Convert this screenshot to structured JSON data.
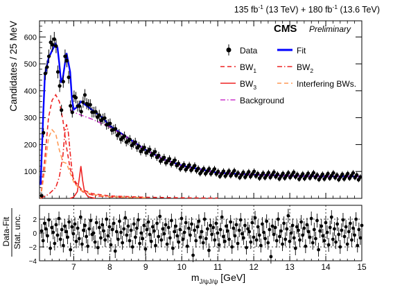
{
  "header": {
    "lumi_a": "135 fb",
    "lumi_a_exp": "-1",
    "lumi_a_energy": " (13 TeV) + 180 fb",
    "lumi_b_exp": "-1",
    "lumi_b_energy": " (13.6 TeV)",
    "experiment": "CMS",
    "status": "Preliminary"
  },
  "chart_data": {
    "type": "scatter",
    "xlabel": "m",
    "xlabel_sub": "J/ψJ/ψ",
    "xlabel_unit": " [GeV]",
    "ylabel": "Candidates / 25 MeV",
    "xlim": [
      6.05,
      15.0
    ],
    "ylim": [
      0,
      660
    ],
    "x_ticks": [
      7,
      8,
      9,
      10,
      11,
      12,
      13,
      14,
      15
    ],
    "x_tick_labels": [
      "7",
      "8",
      "9",
      "10",
      "11",
      "12",
      "13",
      "14",
      "15"
    ],
    "y_ticks": [
      100,
      200,
      300,
      400,
      500,
      600
    ],
    "y_tick_labels": [
      "100",
      "200",
      "300",
      "400",
      "500",
      "600"
    ],
    "legend": {
      "placement": "top-right",
      "entries": [
        {
          "label": "Data",
          "style": "marker",
          "color": "#000000"
        },
        {
          "label": "Fit",
          "style": "solid",
          "color": "#0000ff"
        },
        {
          "label": "BW",
          "sub": "1",
          "style": "dashed",
          "color": "#ee2222"
        },
        {
          "label": "BW",
          "sub": "2",
          "style": "dashdot",
          "color": "#ee2222"
        },
        {
          "label": "BW",
          "sub": "3",
          "style": "solid",
          "color": "#ee2222"
        },
        {
          "label": "Interfering BWs.",
          "style": "dashed",
          "color": "#ff9955"
        },
        {
          "label": "Background",
          "style": "dashdot",
          "color": "#cc33cc"
        }
      ]
    },
    "series": [
      {
        "name": "Data",
        "style": "points",
        "color": "#000000",
        "x": [
          6.11,
          6.15,
          6.2,
          6.25,
          6.3,
          6.35,
          6.4,
          6.45,
          6.5,
          6.55,
          6.6,
          6.65,
          6.7,
          6.75,
          6.8,
          6.85,
          6.9,
          6.95,
          7.0,
          7.1,
          7.2,
          7.3,
          7.4,
          7.5,
          7.6,
          7.8,
          8.0,
          8.2,
          8.4,
          8.6,
          8.8,
          9.0,
          9.2,
          9.5,
          9.8,
          10.0,
          10.5,
          11.0,
          11.5,
          12.0,
          12.5,
          13.0,
          13.5,
          14.0,
          14.5,
          15.0
        ],
        "y": [
          30,
          200,
          440,
          500,
          520,
          560,
          580,
          595,
          560,
          490,
          430,
          330,
          420,
          510,
          540,
          480,
          330,
          320,
          380,
          350,
          330,
          380,
          350,
          330,
          310,
          300,
          270,
          240,
          225,
          205,
          190,
          180,
          165,
          145,
          130,
          120,
          105,
          95,
          90,
          88,
          85,
          85,
          83,
          82,
          82,
          82
        ]
      },
      {
        "name": "Fit",
        "style": "solid",
        "color": "#0000ff",
        "x": [
          6.08,
          6.15,
          6.2,
          6.3,
          6.4,
          6.5,
          6.55,
          6.6,
          6.65,
          6.7,
          6.8,
          6.9,
          6.95,
          7.0,
          7.1,
          7.2,
          7.4,
          7.6,
          7.8,
          8.0,
          8.5,
          9.0,
          9.5,
          10.0,
          11.0,
          12.0,
          13.0,
          14.0,
          15.0
        ],
        "y": [
          50,
          300,
          460,
          520,
          550,
          575,
          560,
          500,
          430,
          450,
          540,
          470,
          370,
          330,
          340,
          360,
          340,
          320,
          300,
          270,
          225,
          180,
          145,
          122,
          95,
          88,
          84,
          82,
          82
        ]
      },
      {
        "name": "BW",
        "sub": "1",
        "style": "dashed",
        "color": "#ee2222",
        "x": [
          6.08,
          6.2,
          6.3,
          6.4,
          6.5,
          6.6,
          6.7,
          6.8,
          6.9,
          7.0,
          7.2,
          7.5,
          8.0,
          9.0,
          10.0,
          11.0
        ],
        "y": [
          0,
          150,
          300,
          365,
          385,
          360,
          290,
          190,
          110,
          70,
          35,
          18,
          9,
          4,
          2,
          1
        ]
      },
      {
        "name": "BW",
        "sub": "2",
        "style": "dashdot",
        "color": "#ee2222",
        "x": [
          6.08,
          6.3,
          6.5,
          6.6,
          6.7,
          6.75,
          6.8,
          6.85,
          6.9,
          6.95,
          7.0,
          7.1,
          7.3,
          7.6,
          8.0,
          9.0
        ],
        "y": [
          0,
          15,
          40,
          80,
          160,
          240,
          275,
          245,
          170,
          105,
          70,
          40,
          20,
          10,
          5,
          2
        ]
      },
      {
        "name": "BW",
        "sub": "3",
        "style": "solid",
        "color": "#ee2222",
        "x": [
          6.9,
          7.0,
          7.1,
          7.15,
          7.2,
          7.25,
          7.3,
          7.4,
          7.6
        ],
        "y": [
          0,
          5,
          25,
          70,
          120,
          65,
          25,
          6,
          0
        ]
      },
      {
        "name": "Interfering BWs.",
        "style": "dashed",
        "color": "#ff9955",
        "x": [
          6.08,
          6.2,
          6.3,
          6.4,
          6.5,
          6.6,
          6.7,
          6.8,
          6.9,
          7.0,
          7.2,
          7.5,
          8.0,
          9.0
        ],
        "y": [
          0,
          110,
          225,
          255,
          240,
          180,
          135,
          130,
          95,
          60,
          30,
          15,
          6,
          2
        ]
      },
      {
        "name": "Background",
        "style": "dashdot",
        "color": "#cc33cc",
        "x": [
          6.9,
          7.0,
          7.2,
          7.5,
          8.0,
          8.5,
          9.0,
          9.5,
          10.0,
          11.0,
          12.0,
          13.0,
          14.0,
          15.0
        ],
        "y": [
          330,
          320,
          310,
          295,
          265,
          225,
          180,
          145,
          120,
          95,
          88,
          84,
          82,
          82
        ]
      }
    ]
  },
  "ratio_panel": {
    "ylabel_num": "Data-Fit",
    "ylabel_den": "Stat. unc.",
    "ylim": [
      -4,
      4
    ],
    "y_ticks": [
      -4,
      -2,
      0,
      2
    ],
    "y_tick_labels": [
      "−4",
      "−2",
      "0",
      "2"
    ],
    "reference_lines": [
      -2,
      2
    ],
    "points": [
      0.3,
      -1.1,
      1.4,
      0.6,
      -0.4,
      1.9,
      -2.2,
      0.8,
      0.1,
      -1.5,
      1.2,
      -0.3,
      2.1,
      -0.9,
      0.5,
      -1.8,
      1.0,
      0.2,
      -0.6,
      1.6,
      -2.4,
      0.9,
      -0.1,
      1.3,
      -1.2,
      0.7,
      -0.8,
      2.3,
      -1.6,
      0.4,
      1.1,
      -0.5,
      -1.9,
      0.6,
      1.8,
      -0.2,
      0.0,
      -1.3,
      1.5,
      -2.1,
      0.8,
      -0.7,
      1.2,
      0.3,
      -1.0,
      2.0,
      -0.4,
      0.9,
      -1.7,
      0.5,
      1.4,
      -2.6,
      0.2,
      -0.9,
      1.7,
      0.1,
      -1.4,
      0.6,
      2.2,
      -0.3,
      1.0,
      -1.1,
      0.4,
      -2.0,
      1.3,
      -0.6,
      0.7,
      1.9,
      -1.5,
      0.0,
      -0.8,
      1.1,
      -2.3,
      0.5,
      1.6,
      -0.2,
      -1.2,
      0.9,
      0.3,
      -1.8,
      1.4,
      -0.5,
      2.4,
      -1.0,
      0.6,
      -0.1,
      1.2,
      -1.6,
      0.8,
      -0.7,
      1.8,
      -2.2,
      0.2,
      1.0,
      -0.4,
      -1.3,
      0.5,
      2.1,
      -0.9,
      0.1,
      1.5,
      -1.9,
      0.7,
      -0.3,
      1.3,
      -3.2,
      0.4,
      -1.1,
      0.9,
      1.7,
      -0.6,
      0.2,
      -1.4,
      2.0,
      -0.8,
      0.6,
      -2.5,
      1.1,
      -0.2,
      0.8,
      -1.0,
      1.4,
      0.0,
      -1.7,
      0.5,
      2.3,
      -0.5,
      -1.2,
      1.0,
      0.3,
      -0.9,
      1.6,
      -2.0,
      0.7,
      -0.4,
      1.2,
      -1.5,
      0.4,
      1.9,
      -0.1,
      -0.7,
      1.1,
      -2.1,
      0.6,
      0.2,
      -1.3,
      1.5,
      -0.6,
      2.2,
      -1.0,
      0.9,
      -0.3,
      -1.8,
      1.3,
      0.1,
      -0.8,
      1.7,
      -1.4,
      0.5,
      -3.4,
      1.0,
      -0.2,
      0.8,
      -1.1,
      2.0,
      -0.5,
      0.3,
      -1.6,
      1.4,
      -0.9,
      0.6,
      2.5,
      -1.2,
      0.0,
      1.1,
      -0.7,
      -2.2,
      0.9,
      0.4,
      -1.0,
      1.6,
      -0.3,
      0.7,
      -1.9,
      1.2,
      0.2,
      -0.6,
      2.1,
      -1.4,
      0.5,
      -0.8,
      1.8,
      -2.4,
      0.3,
      1.0,
      -0.4,
      -1.1,
      1.5,
      0.1,
      -1.7,
      0.8,
      2.3,
      -0.9,
      0.6,
      -1.3,
      1.3,
      -0.2,
      -2.0,
      0.4,
      1.9,
      -0.5,
      0.9,
      -1.6,
      0.2,
      1.4,
      -1.0,
      0.7,
      -0.3,
      2.0,
      -1.8,
      0.5,
      -0.7,
      1.1
    ]
  }
}
